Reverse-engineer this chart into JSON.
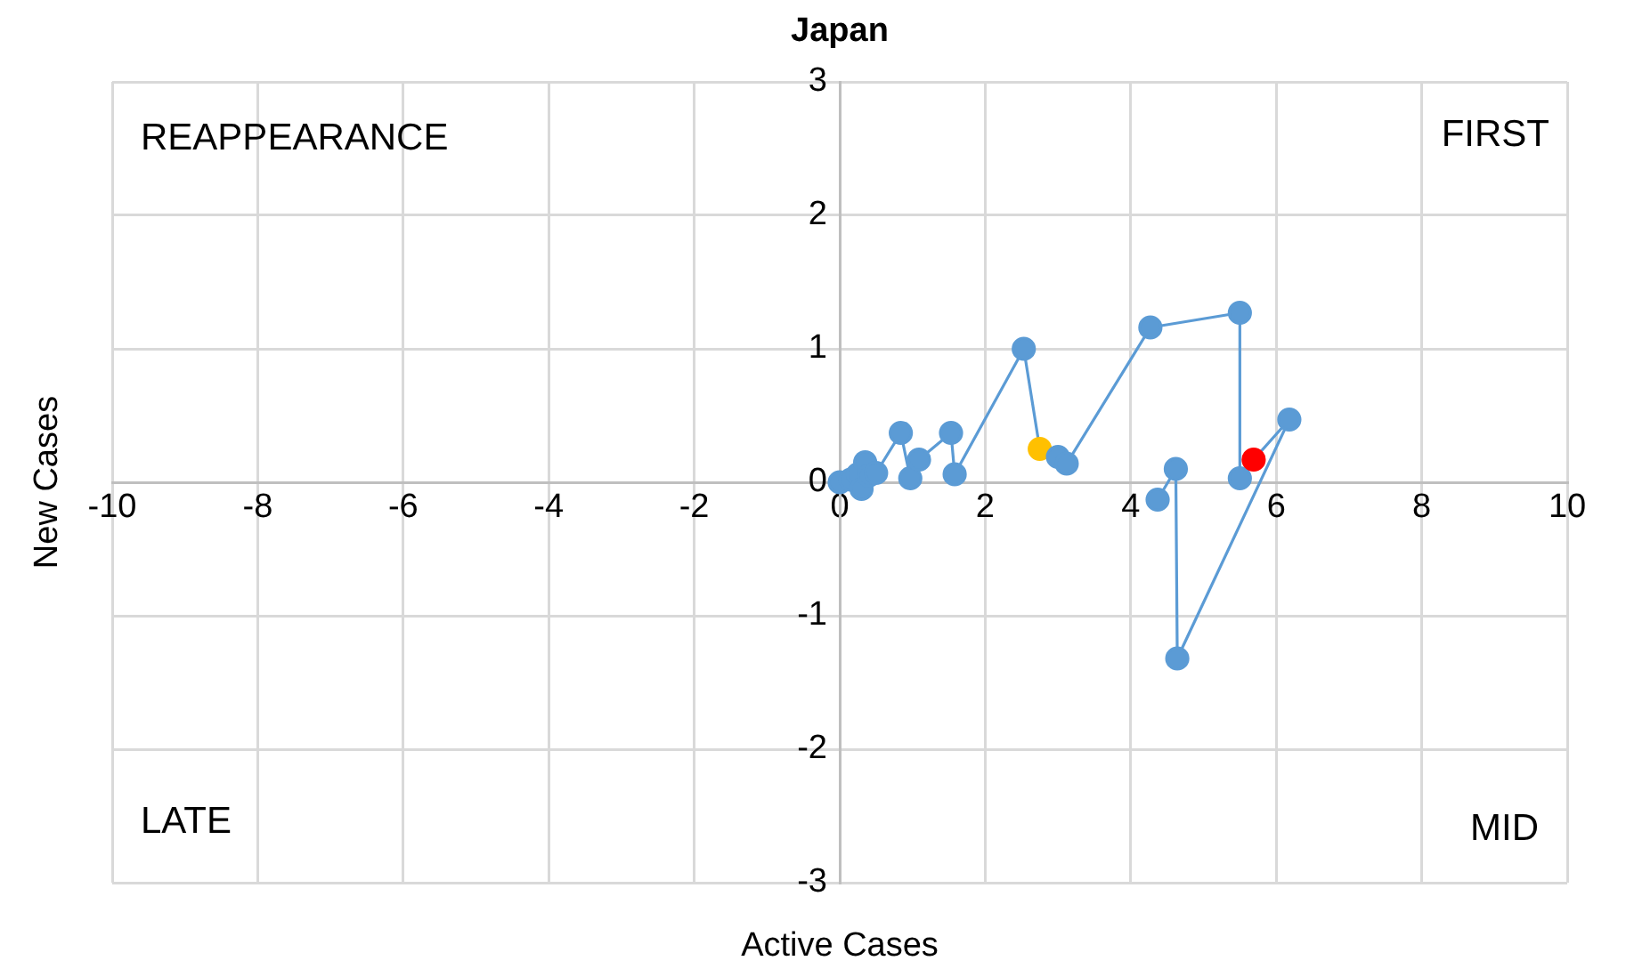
{
  "chart_data": {
    "type": "scatter",
    "title": "Japan",
    "xlabel": "Active Cases",
    "ylabel": "New Cases",
    "series": [
      {
        "type": "line",
        "color": "#5b9bd5",
        "x": [
          0,
          0.15,
          0.25,
          0.35,
          0.3,
          0.4,
          0.5,
          0.84,
          0.97,
          1.09,
          1.53,
          1.58,
          2.53,
          2.75,
          3.0,
          3.12,
          4.27,
          5.5,
          5.5,
          5.69,
          6.18,
          4.64,
          4.62,
          4.37
        ],
        "values": [
          0,
          0.02,
          0.06,
          0.15,
          -0.05,
          0.05,
          0.07,
          0.37,
          0.03,
          0.17,
          0.37,
          0.06,
          1.0,
          0.25,
          0.19,
          0.14,
          1.16,
          1.27,
          0.03,
          0.17,
          0.47,
          -1.32,
          0.1,
          -0.13
        ],
        "colors": [
          "#5b9bd5",
          "#5b9bd5",
          "#5b9bd5",
          "#5b9bd5",
          "#5b9bd5",
          "#5b9bd5",
          "#5b9bd5",
          "#5b9bd5",
          "#5b9bd5",
          "#5b9bd5",
          "#5b9bd5",
          "#5b9bd5",
          "#5b9bd5",
          "#ffc000",
          "#5b9bd5",
          "#5b9bd5",
          "#5b9bd5",
          "#5b9bd5",
          "#5b9bd5",
          "#ff0000",
          "#5b9bd5",
          "#5b9bd5",
          "#5b9bd5",
          "#5b9bd5"
        ]
      }
    ],
    "xlim": [
      -10,
      10
    ],
    "xticks": [
      -10,
      -8,
      -6,
      -4,
      -2,
      0,
      2,
      4,
      6,
      8,
      10
    ],
    "ylim": [
      -3,
      3
    ],
    "yticks": [
      -3,
      -2,
      -1,
      0,
      1,
      2,
      3
    ],
    "grid": true,
    "marker": "circle",
    "line_style": "solid",
    "annotations": [
      "REAPPEARANCE",
      "FIRST",
      "LATE",
      "MID"
    ]
  }
}
